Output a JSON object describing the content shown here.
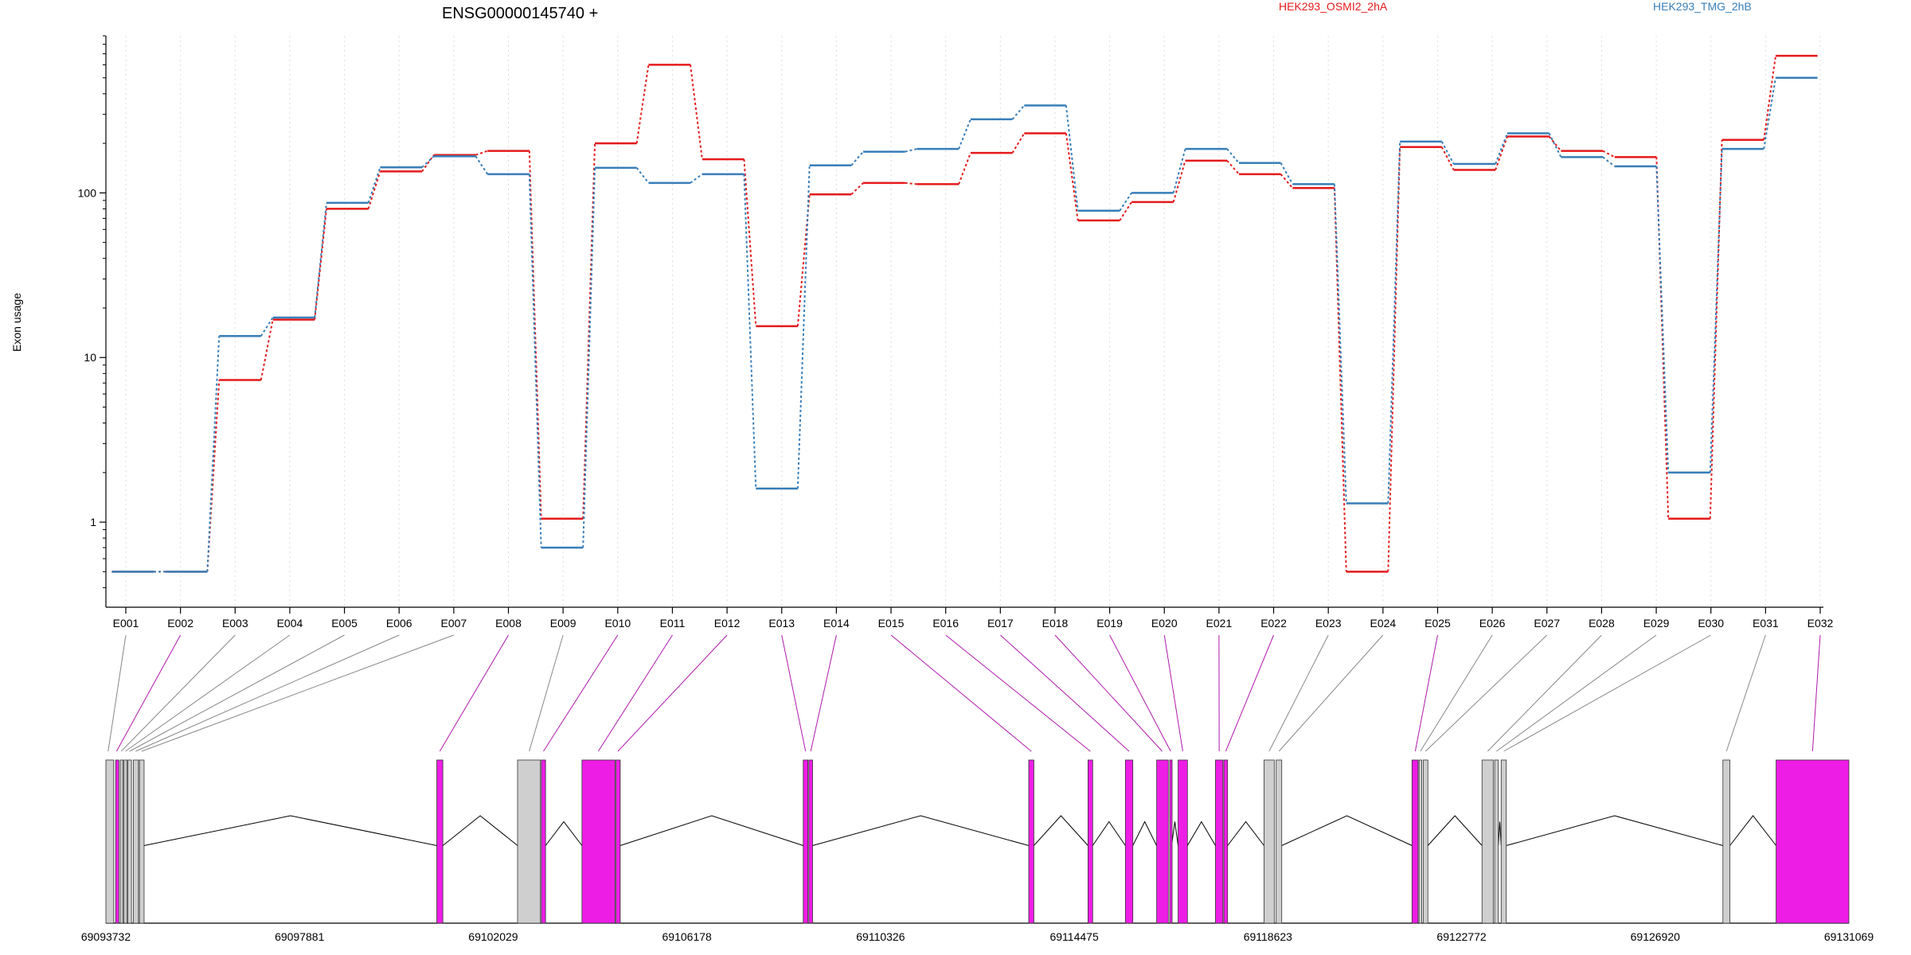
{
  "chart_data": {
    "type": "line",
    "title": "ENSG00000145740 +",
    "xlabel": "",
    "ylabel": "Exon usage",
    "y_scale": "log",
    "ylim": [
      0.38,
      900
    ],
    "y_ticks": [
      1,
      10,
      100
    ],
    "y_tick_labels": [
      "1",
      "10",
      "100"
    ],
    "grid": "vertical dotted",
    "legend_position": "top",
    "colors": {
      "osmi": "#e41a1c",
      "tmg": "#377eb8",
      "exon_tested": "#ee1de6",
      "exon_other": "#cfcfcf",
      "grid": "#dddddd"
    },
    "categories": [
      "E001",
      "E002",
      "E003",
      "E004",
      "E005",
      "E006",
      "E007",
      "E008",
      "E009",
      "E010",
      "E011",
      "E012",
      "E013",
      "E014",
      "E015",
      "E016",
      "E017",
      "E018",
      "E019",
      "E020",
      "E021",
      "E022",
      "E023",
      "E024",
      "E025",
      "E026",
      "E027",
      "E028",
      "E029",
      "E030",
      "E031",
      "E032"
    ],
    "series": [
      {
        "name": "HEK293_OSMI2_2hA",
        "color": "#e41a1c",
        "values": [
          0.5,
          0.5,
          7.3,
          17,
          80,
          135,
          170,
          180,
          1.05,
          200,
          600,
          160,
          15.5,
          98,
          115,
          113,
          175,
          230,
          68,
          88,
          157,
          130,
          107,
          0.5,
          190,
          138,
          220,
          180,
          165,
          1.05,
          210,
          680
        ]
      },
      {
        "name": "HEK293_TMG_2hB",
        "color": "#377eb8",
        "values": [
          0.5,
          0.5,
          13.5,
          17.5,
          87,
          143,
          167,
          130,
          0.7,
          142,
          115,
          130,
          1.6,
          147,
          178,
          185,
          280,
          340,
          78,
          100,
          185,
          152,
          113,
          1.3,
          205,
          150,
          230,
          165,
          145,
          2.0,
          185,
          500
        ]
      }
    ],
    "exon_tested": [
      false,
      true,
      false,
      false,
      false,
      false,
      false,
      true,
      false,
      true,
      true,
      true,
      true,
      true,
      true,
      true,
      true,
      true,
      true,
      true,
      true,
      true,
      false,
      false,
      true,
      false,
      false,
      false,
      false,
      false,
      false,
      true
    ],
    "gene_model": {
      "genomic_ticks": [
        "69093732",
        "69097881",
        "69102029",
        "69106178",
        "69110326",
        "69114475",
        "69118623",
        "69122772",
        "69126920",
        "69131069"
      ],
      "range": [
        69093732,
        69131069
      ],
      "exons": [
        [
          69093732,
          69093900
        ],
        [
          69093940,
          69094010
        ],
        [
          69094040,
          69094100
        ],
        [
          69094120,
          69094180
        ],
        [
          69094200,
          69094280
        ],
        [
          69094320,
          69094430
        ],
        [
          69094450,
          69094550
        ],
        [
          69100820,
          69100950
        ],
        [
          69102550,
          69103040
        ],
        [
          69103060,
          69103150
        ],
        [
          69103930,
          69104640
        ],
        [
          69104660,
          69104750
        ],
        [
          69108670,
          69108770
        ],
        [
          69108790,
          69108870
        ],
        [
          69113500,
          69113610
        ],
        [
          69114770,
          69114870
        ],
        [
          69115570,
          69115730
        ],
        [
          69116240,
          69116490
        ],
        [
          69116520,
          69116560
        ],
        [
          69116700,
          69116900
        ],
        [
          69117500,
          69117660
        ],
        [
          69117680,
          69117760
        ],
        [
          69118540,
          69118760
        ],
        [
          69118800,
          69118920
        ],
        [
          69121710,
          69121840
        ],
        [
          69121860,
          69121920
        ],
        [
          69121950,
          69122050
        ],
        [
          69123210,
          69123450
        ],
        [
          69123480,
          69123560
        ],
        [
          69123620,
          69123730
        ],
        [
          69128370,
          69128520
        ],
        [
          69129510,
          69131069
        ]
      ],
      "exon_anchor": [
        69093780,
        69093960,
        69094060,
        69094150,
        69094240,
        69094370,
        69094500,
        69100885,
        69102800,
        69103105,
        69104280,
        69104700,
        69108720,
        69108830,
        69113555,
        69114820,
        69115650,
        69116360,
        69116540,
        69116800,
        69117580,
        69117720,
        69118650,
        69118860,
        69121780,
        69121890,
        69122000,
        69123330,
        69123520,
        69123675,
        69128445,
        69130290
      ]
    }
  }
}
